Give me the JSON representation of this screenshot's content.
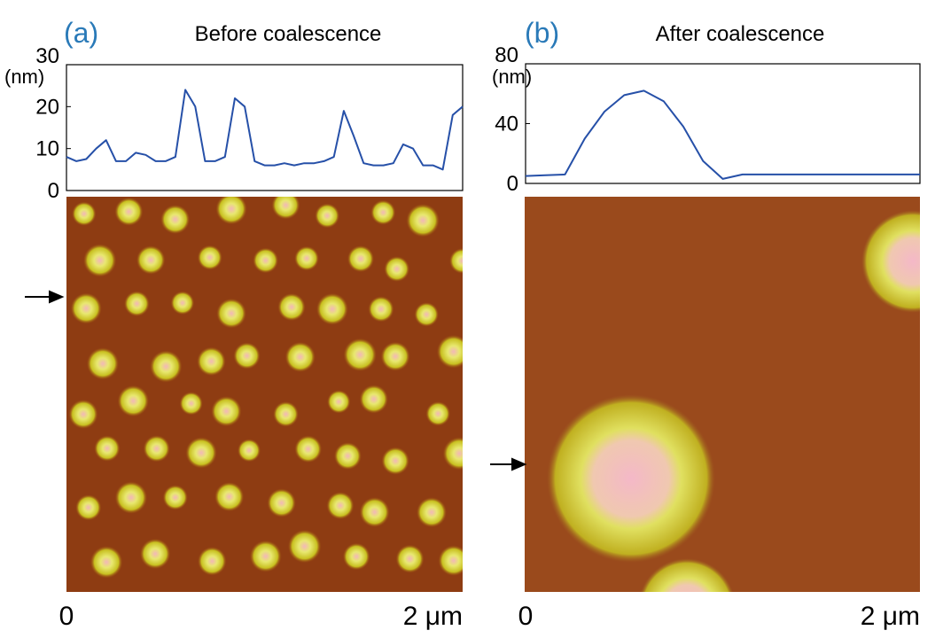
{
  "chart_data": [
    {
      "type": "line",
      "panel": "(a)",
      "title": "Before coalescence",
      "ylabel": "(nm)",
      "xlim": [
        0,
        2
      ],
      "xticks": [
        0,
        {
          "value": 2,
          "label": "2 μm"
        }
      ],
      "ylim": [
        0,
        30
      ],
      "yticks": [
        0,
        10,
        20,
        30
      ],
      "x": [
        0,
        0.05,
        0.1,
        0.15,
        0.2,
        0.25,
        0.3,
        0.35,
        0.4,
        0.45,
        0.5,
        0.55,
        0.6,
        0.65,
        0.7,
        0.75,
        0.8,
        0.85,
        0.9,
        0.95,
        1.0,
        1.05,
        1.1,
        1.15,
        1.2,
        1.25,
        1.3,
        1.35,
        1.4,
        1.45,
        1.5,
        1.55,
        1.6,
        1.65,
        1.7,
        1.75,
        1.8,
        1.85,
        1.9,
        1.95,
        2.0
      ],
      "series": [
        {
          "color": "#2650a8",
          "values": [
            8,
            7,
            7.5,
            10,
            12,
            7,
            7,
            9,
            8.5,
            7,
            7,
            8,
            24,
            20,
            7,
            7,
            8,
            22,
            20,
            7,
            6,
            6,
            6.5,
            6,
            6.5,
            6.5,
            7,
            8,
            19,
            13,
            6.5,
            6,
            6,
            6.5,
            11,
            10,
            6,
            6,
            5,
            18,
            20
          ]
        }
      ]
    },
    {
      "type": "line",
      "panel": "(b)",
      "title": "After coalescence",
      "ylabel": "(nm)",
      "xlim": [
        0,
        2
      ],
      "xticks": [
        0,
        {
          "value": 2,
          "label": "2 μm"
        }
      ],
      "ylim": [
        0,
        80
      ],
      "yticks": [
        0,
        40,
        80
      ],
      "x": [
        0,
        0.1,
        0.2,
        0.3,
        0.4,
        0.5,
        0.6,
        0.7,
        0.8,
        0.9,
        1.0,
        1.1,
        1.2,
        1.3,
        1.4,
        1.5,
        1.6,
        1.7,
        1.8,
        1.9,
        2.0
      ],
      "series": [
        {
          "color": "#2650a8",
          "values": [
            5,
            5.5,
            6,
            30,
            48,
            59,
            62,
            55,
            38,
            15,
            3,
            6,
            6,
            6,
            6,
            6,
            6,
            6,
            6,
            6,
            6
          ]
        }
      ]
    }
  ]
}
